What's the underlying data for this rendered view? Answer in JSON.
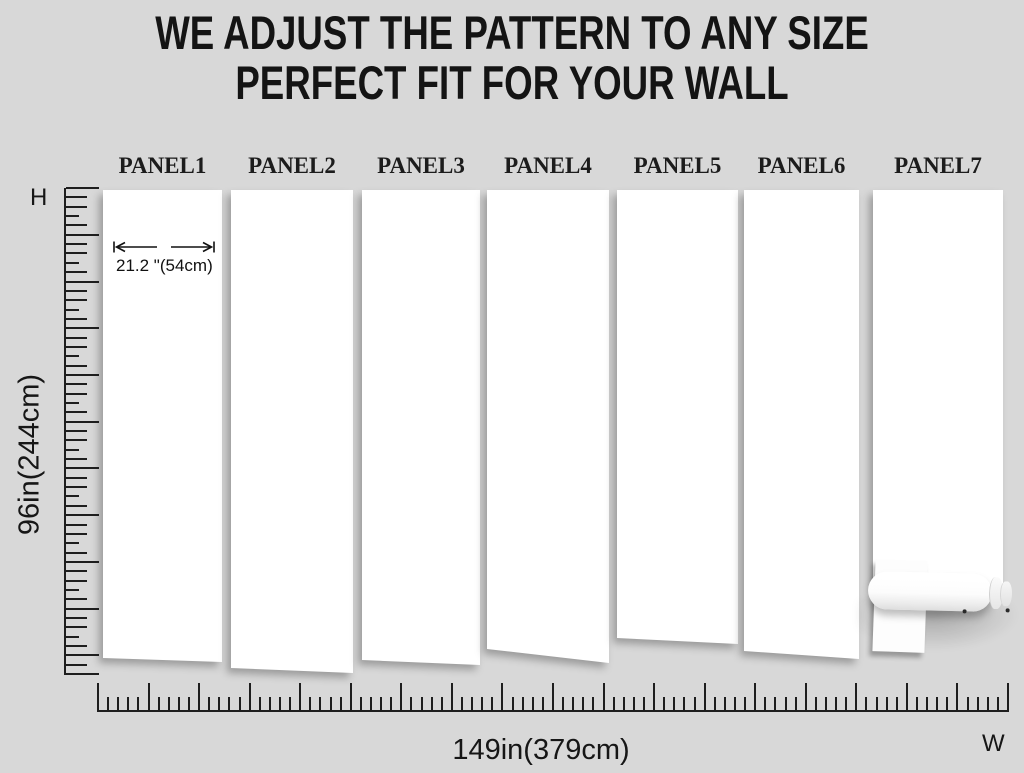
{
  "colors": {
    "background": "#d8d8d8",
    "panel": "#ffffff",
    "ink": "#1a1a1a"
  },
  "title": {
    "line1": "WE ADJUST THE PATTERN TO ANY SIZE",
    "line2": "PERFECT FIT FOR YOUR WALL"
  },
  "panels": [
    {
      "label": "PANEL1"
    },
    {
      "label": "PANEL2"
    },
    {
      "label": "PANEL3"
    },
    {
      "label": "PANEL4"
    },
    {
      "label": "PANEL5"
    },
    {
      "label": "PANEL6"
    },
    {
      "label": "PANEL7"
    }
  ],
  "annotation": {
    "panel_width_text": "21.2 \"(54cm)",
    "arrow_icon": "double-arrow-icon"
  },
  "vertical_ruler": {
    "corner_label": "H",
    "dimension_label": "96in(244cm)",
    "tick_count": 53,
    "major_every": 5
  },
  "horizontal_ruler": {
    "corner_label": "W",
    "dimension_label": "149in(379cm)",
    "tick_count": 91,
    "major_every": 5
  },
  "objects": {
    "roll_icon": "wallpaper-roll-icon"
  }
}
